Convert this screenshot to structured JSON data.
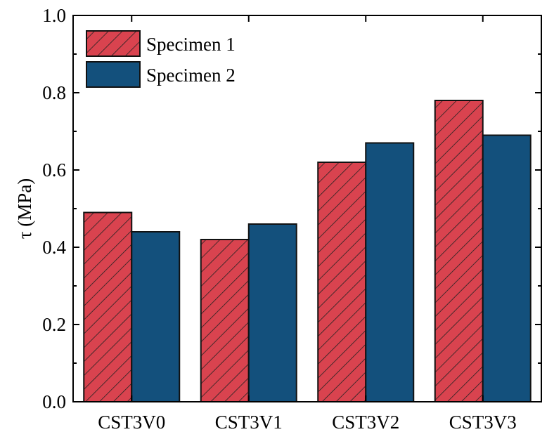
{
  "chart_data": {
    "type": "bar",
    "title": "",
    "xlabel": "",
    "ylabel": "τ (MPa)",
    "ylim": [
      0.0,
      1.0
    ],
    "yticks": [
      "0.0",
      "0.2",
      "0.4",
      "0.6",
      "0.8",
      "1.0"
    ],
    "categories": [
      "CST3V0",
      "CST3V1",
      "CST3V2",
      "CST3V3"
    ],
    "series": [
      {
        "name": "Specimen 1",
        "values": [
          0.49,
          0.42,
          0.62,
          0.78
        ],
        "color": "#d9434f",
        "pattern": "hatch"
      },
      {
        "name": "Specimen 2",
        "values": [
          0.44,
          0.46,
          0.67,
          0.69
        ],
        "color": "#13507c",
        "pattern": "solid"
      }
    ],
    "legend_position": "top-left",
    "grid": false
  }
}
